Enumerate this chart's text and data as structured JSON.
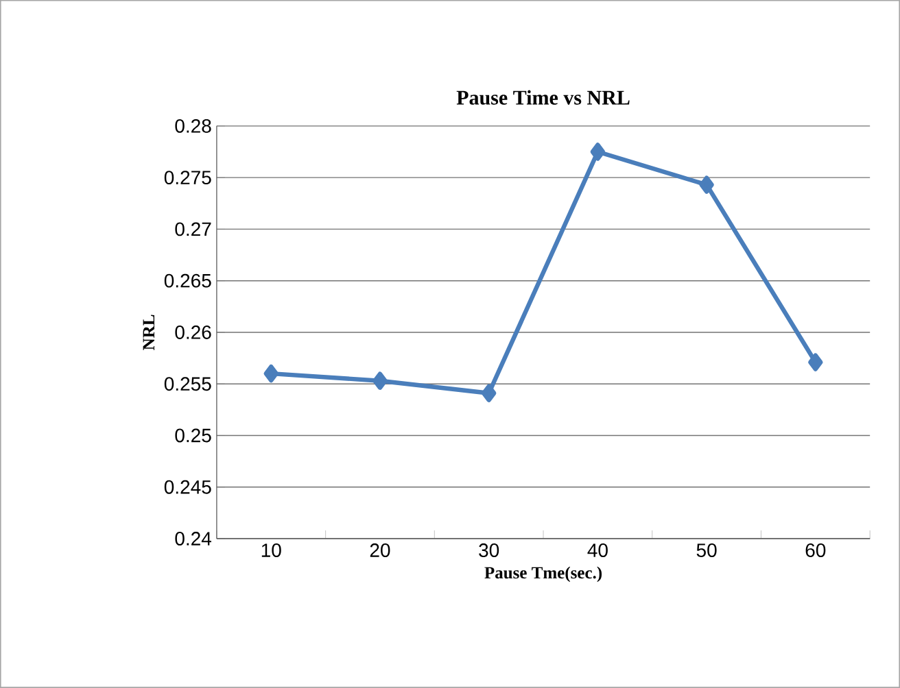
{
  "chart_data": {
    "type": "line",
    "title": "Pause Time vs NRL",
    "xlabel": "Pause Tme(sec.)",
    "ylabel": "NRL",
    "categories": [
      "10",
      "20",
      "30",
      "40",
      "50",
      "60"
    ],
    "series": [
      {
        "color": "#4a7ebb",
        "values": [
          0.256,
          0.2553,
          0.2541,
          0.2775,
          0.2743,
          0.2571
        ]
      }
    ],
    "ylim": [
      0.24,
      0.28
    ],
    "yticks": [
      0.24,
      0.245,
      0.25,
      0.255,
      0.26,
      0.265,
      0.27,
      0.275,
      0.28
    ],
    "grid": "y",
    "marker": "diamond",
    "line_style": "solid"
  }
}
